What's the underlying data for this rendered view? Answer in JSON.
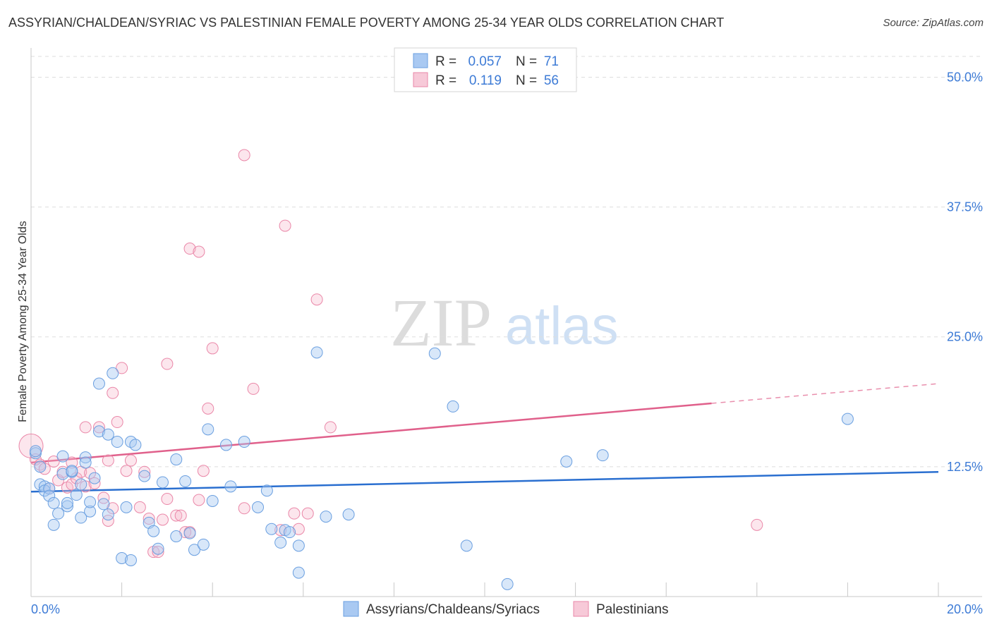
{
  "title": "ASSYRIAN/CHALDEAN/SYRIAC VS PALESTINIAN FEMALE POVERTY AMONG 25-34 YEAR OLDS CORRELATION CHART",
  "source": "Source: ZipAtlas.com",
  "watermark": {
    "zip": "ZIP",
    "atlas": "atlas"
  },
  "legend": {
    "r_label": "R =",
    "n_label": "N =",
    "rows": [
      {
        "r": "0.057",
        "n": "71",
        "color": "#a9c9f2"
      },
      {
        "r": "0.119",
        "n": "56",
        "color": "#f7b8cc"
      }
    ]
  },
  "colors": {
    "blue": "#6a9fe0",
    "blue_line": "#2a6fd0",
    "pink": "#ea87a8",
    "pink_line": "#e0608b",
    "tick": "#3d7bd6"
  },
  "chart_data": {
    "type": "scatter",
    "title": "ASSYRIAN/CHALDEAN/SYRIAC VS PALESTINIAN FEMALE POVERTY AMONG 25-34 YEAR OLDS CORRELATION CHART",
    "xlabel": "",
    "ylabel": "Female Poverty Among 25-34 Year Olds",
    "xlim": [
      0,
      20
    ],
    "ylim": [
      0,
      52
    ],
    "x_tick_labels": [
      "0.0%",
      "20.0%"
    ],
    "y_ticks": [
      12.5,
      25.0,
      37.5,
      50.0
    ],
    "y_tick_labels": [
      "12.5%",
      "25.0%",
      "37.5%",
      "50.0%"
    ],
    "grid": true,
    "legend_position": "top-center",
    "series": [
      {
        "name": "Assyrians/Chaldeans/Syriacs",
        "r": 0.057,
        "n": 71,
        "trend": {
          "x": [
            0,
            20
          ],
          "y": [
            10.1,
            12.0
          ]
        },
        "points": [
          [
            0.1,
            13.8
          ],
          [
            0.2,
            12.5
          ],
          [
            0.2,
            10.8
          ],
          [
            0.3,
            10.6
          ],
          [
            0.3,
            10.2
          ],
          [
            0.4,
            10.4
          ],
          [
            0.4,
            9.7
          ],
          [
            0.5,
            9.0
          ],
          [
            0.5,
            6.9
          ],
          [
            0.6,
            8.0
          ],
          [
            0.7,
            11.8
          ],
          [
            0.7,
            13.5
          ],
          [
            0.8,
            8.7
          ],
          [
            0.8,
            9.0
          ],
          [
            0.9,
            12.0
          ],
          [
            0.9,
            12.1
          ],
          [
            1.0,
            9.8
          ],
          [
            1.1,
            10.8
          ],
          [
            1.1,
            7.6
          ],
          [
            1.2,
            13.4
          ],
          [
            1.2,
            12.9
          ],
          [
            1.3,
            8.2
          ],
          [
            1.3,
            9.1
          ],
          [
            1.4,
            11.4
          ],
          [
            1.5,
            15.9
          ],
          [
            1.5,
            20.5
          ],
          [
            1.6,
            8.9
          ],
          [
            1.7,
            7.9
          ],
          [
            1.7,
            15.6
          ],
          [
            1.8,
            21.5
          ],
          [
            1.9,
            14.9
          ],
          [
            2.0,
            3.7
          ],
          [
            2.1,
            8.6
          ],
          [
            2.2,
            3.5
          ],
          [
            2.2,
            14.9
          ],
          [
            2.3,
            14.6
          ],
          [
            2.5,
            11.6
          ],
          [
            2.6,
            7.1
          ],
          [
            2.7,
            6.3
          ],
          [
            2.8,
            4.6
          ],
          [
            2.9,
            11.0
          ],
          [
            3.2,
            5.8
          ],
          [
            3.2,
            13.2
          ],
          [
            3.4,
            11.1
          ],
          [
            3.5,
            6.1
          ],
          [
            3.6,
            4.5
          ],
          [
            3.8,
            5.0
          ],
          [
            3.9,
            16.1
          ],
          [
            4.0,
            9.2
          ],
          [
            4.3,
            14.6
          ],
          [
            4.4,
            10.6
          ],
          [
            4.7,
            14.9
          ],
          [
            5.0,
            8.6
          ],
          [
            5.2,
            10.2
          ],
          [
            5.3,
            6.5
          ],
          [
            5.5,
            5.2
          ],
          [
            5.6,
            6.4
          ],
          [
            5.7,
            6.2
          ],
          [
            5.9,
            2.3
          ],
          [
            5.9,
            4.9
          ],
          [
            6.3,
            23.5
          ],
          [
            6.5,
            7.7
          ],
          [
            7.0,
            7.9
          ],
          [
            8.9,
            23.4
          ],
          [
            9.3,
            18.3
          ],
          [
            9.6,
            4.9
          ],
          [
            10.5,
            1.2
          ],
          [
            11.8,
            13.0
          ],
          [
            12.6,
            13.6
          ],
          [
            18.0,
            17.1
          ],
          [
            0.1,
            14.0
          ]
        ]
      },
      {
        "name": "Palestinians",
        "r": 0.119,
        "n": 56,
        "trend": {
          "x": [
            0,
            15
          ],
          "y": [
            12.9,
            18.6
          ]
        },
        "trend_dashed": {
          "x": [
            15,
            20
          ],
          "y": [
            18.6,
            20.5
          ]
        },
        "points": [
          [
            0.0,
            14.5
          ],
          [
            0.1,
            13.2
          ],
          [
            0.2,
            12.7
          ],
          [
            0.3,
            12.3
          ],
          [
            0.4,
            10.4
          ],
          [
            0.5,
            13.0
          ],
          [
            0.6,
            11.2
          ],
          [
            0.7,
            12.0
          ],
          [
            0.8,
            10.5
          ],
          [
            0.9,
            12.9
          ],
          [
            0.9,
            10.8
          ],
          [
            1.0,
            11.4
          ],
          [
            1.1,
            12.0
          ],
          [
            1.2,
            10.6
          ],
          [
            1.2,
            16.3
          ],
          [
            1.3,
            11.9
          ],
          [
            1.4,
            10.9
          ],
          [
            1.5,
            16.3
          ],
          [
            1.6,
            9.5
          ],
          [
            1.7,
            13.1
          ],
          [
            1.7,
            7.3
          ],
          [
            1.8,
            8.5
          ],
          [
            1.8,
            19.6
          ],
          [
            1.9,
            16.8
          ],
          [
            2.0,
            22.0
          ],
          [
            2.1,
            12.1
          ],
          [
            2.2,
            13.1
          ],
          [
            2.4,
            8.6
          ],
          [
            2.5,
            12.0
          ],
          [
            2.6,
            7.5
          ],
          [
            2.7,
            4.3
          ],
          [
            2.8,
            4.3
          ],
          [
            2.9,
            7.4
          ],
          [
            3.0,
            9.4
          ],
          [
            3.0,
            22.4
          ],
          [
            3.2,
            7.8
          ],
          [
            3.3,
            7.8
          ],
          [
            3.4,
            6.2
          ],
          [
            3.5,
            6.2
          ],
          [
            3.5,
            33.5
          ],
          [
            3.7,
            33.2
          ],
          [
            3.7,
            9.3
          ],
          [
            3.8,
            12.1
          ],
          [
            3.9,
            18.1
          ],
          [
            4.0,
            23.9
          ],
          [
            4.7,
            8.5
          ],
          [
            4.7,
            42.5
          ],
          [
            4.9,
            20.0
          ],
          [
            5.5,
            6.4
          ],
          [
            5.6,
            35.7
          ],
          [
            5.8,
            8.0
          ],
          [
            5.9,
            6.5
          ],
          [
            6.1,
            8.0
          ],
          [
            6.3,
            28.6
          ],
          [
            6.6,
            16.3
          ],
          [
            16.0,
            6.9
          ]
        ]
      }
    ]
  }
}
